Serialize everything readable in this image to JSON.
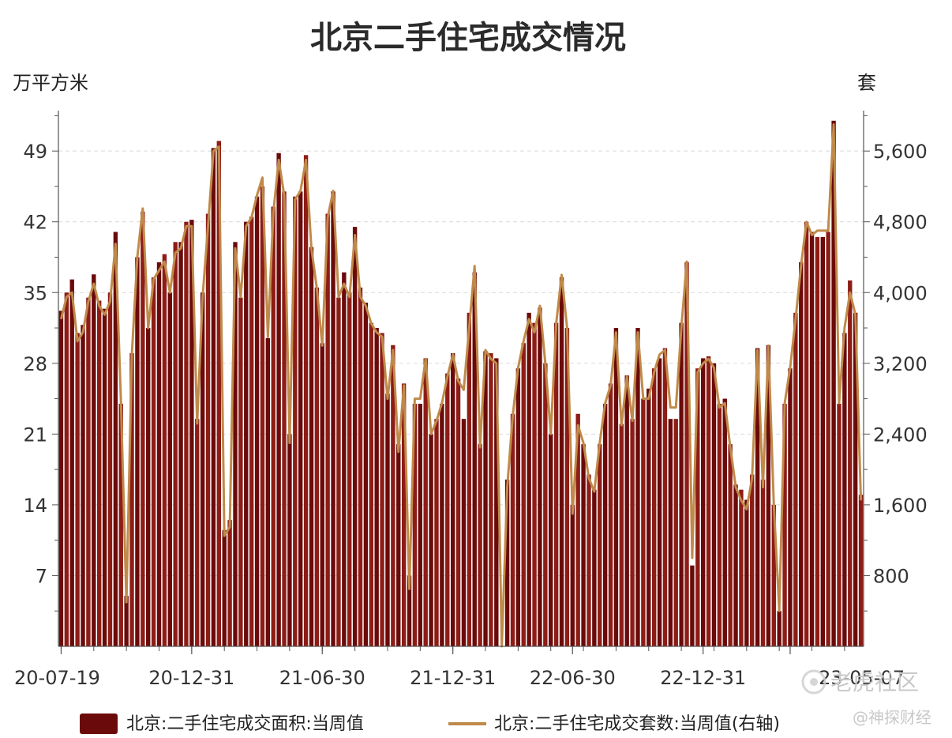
{
  "chart_data": {
    "type": "bar",
    "title": "北京二手住宅成交情况",
    "left_unit": "万平方米",
    "right_unit": "套",
    "ylim_left": [
      0,
      53
    ],
    "ylim_right": [
      0,
      6057
    ],
    "y_ticks_left": [
      7,
      14,
      21,
      28,
      35,
      42,
      49
    ],
    "y_ticks_right": [
      800,
      1600,
      2400,
      3200,
      4000,
      4800,
      5600
    ],
    "y_ticks_right_labels": [
      "800",
      "1,600",
      "2,400",
      "3,200",
      "4,000",
      "4,800",
      "5,600"
    ],
    "x_tick_labels": [
      "20-07-19",
      "20-12-31",
      "21-06-30",
      "21-12-31",
      "22-06-30",
      "22-12-31",
      "23-05-07"
    ],
    "x_tick_label_indices": [
      0,
      24,
      48,
      72,
      94,
      118,
      134
    ],
    "grid": true,
    "legend_position": "bottom",
    "series": [
      {
        "name": "北京:二手住宅成交面积:当周值",
        "kind": "bar",
        "axis": "left",
        "color": "#6b0a0a",
        "values": [
          33.2,
          35.0,
          36.3,
          31.0,
          31.8,
          34.5,
          36.8,
          34.2,
          33.4,
          35.0,
          41.0,
          24.0,
          5.0,
          29.0,
          38.5,
          43.0,
          31.5,
          36.5,
          38.0,
          38.8,
          35.0,
          40.0,
          40.0,
          42.0,
          42.2,
          22.5,
          35.0,
          42.8,
          49.3,
          50.0,
          11.5,
          12.5,
          40.0,
          34.5,
          42.0,
          42.5,
          44.5,
          45.5,
          30.5,
          43.5,
          48.8,
          45.0,
          21.0,
          44.5,
          45.0,
          48.6,
          39.5,
          35.5,
          30.0,
          42.8,
          45.0,
          34.5,
          37.0,
          35.0,
          41.5,
          35.5,
          34.0,
          32.0,
          31.5,
          31.0,
          25.0,
          29.8,
          20.0,
          26.0,
          7.0,
          24.0,
          24.0,
          28.5,
          21.0,
          22.5,
          24.0,
          27.0,
          29.0,
          26.5,
          22.5,
          33.0,
          37.0,
          20.0,
          29.2,
          29.0,
          28.5,
          0.0,
          16.5,
          23.0,
          27.5,
          30.0,
          33.0,
          32.0,
          33.5,
          28.0,
          21.0,
          32.0,
          36.5,
          31.5,
          14.0,
          23.0,
          20.0,
          17.0,
          15.5,
          20.0,
          24.0,
          26.0,
          31.5,
          22.0,
          26.8,
          22.5,
          31.5,
          24.5,
          25.5,
          27.5,
          28.5,
          29.5,
          22.5,
          22.5,
          32.0,
          38.0,
          8.0,
          27.5,
          28.5,
          28.7,
          28.0,
          24.0,
          24.5,
          20.0,
          16.0,
          15.5,
          14.5,
          17.0,
          29.5,
          16.5,
          29.8,
          14.0,
          3.5,
          24.0,
          27.5,
          33.0,
          38.0,
          42.0,
          41.0,
          40.5,
          40.5,
          41.0,
          52.0,
          24.0,
          31.0,
          36.2,
          33.0,
          15.0
        ],
        "values_original": [
          33.2,
          35.0,
          36.3,
          31.0,
          31.8,
          34.5,
          36.8,
          34.2,
          33.4,
          35.0,
          41.0,
          24.0,
          5.0,
          29.0,
          38.5,
          43.0,
          31.5,
          36.5,
          38.0,
          38.8,
          35.0,
          40.0,
          40.0,
          42.0,
          42.2,
          22.5,
          35.0,
          42.8,
          49.3,
          50.0,
          11.5,
          12.5,
          40.0,
          34.5,
          42.0,
          42.5,
          44.5,
          45.5,
          30.5,
          43.5,
          48.8,
          45.0,
          21.0,
          44.5,
          45.0,
          48.6,
          39.5,
          35.5,
          30.0,
          42.8,
          45.0,
          34.5,
          37.0,
          35.0,
          41.5,
          35.5,
          34.0,
          32.0,
          31.5,
          31.0,
          25.0,
          29.8,
          20.0,
          26.0,
          7.0,
          24.0,
          24.0,
          28.5,
          21.0,
          22.5,
          24.0,
          27.0,
          29.0,
          26.5,
          22.5,
          33.0,
          37.0,
          20.0,
          29.2,
          29.0,
          28.5,
          0.0,
          16.5,
          23.0,
          27.5,
          30.0,
          33.0,
          32.0,
          33.5,
          28.0,
          21.0,
          32.0,
          36.5,
          31.5,
          14.0,
          23.0,
          20.0,
          17.0,
          15.5,
          20.0,
          24.0,
          26.0,
          31.5,
          22.0,
          26.8,
          22.5,
          31.5,
          24.5,
          25.5,
          27.5,
          28.5,
          29.5,
          22.5,
          22.5,
          32.0,
          38.0,
          8.0,
          27.5,
          28.5,
          28.7,
          28.0,
          24.0,
          24.5,
          20.0,
          16.0,
          15.5,
          14.5,
          17.0,
          29.5,
          16.5,
          29.8,
          14.0,
          3.5,
          24.0,
          27.5,
          33.0,
          38.0,
          42.0,
          41.0,
          40.5,
          40.5,
          41.0,
          52.0,
          24.0,
          31.0,
          36.2,
          33.0,
          15.0
        ]
      },
      {
        "name": "北京:二手住宅成交套数:当周值(右轴)",
        "kind": "line",
        "axis": "right",
        "color": "#c08a4a",
        "values": [
          3700,
          3950,
          4000,
          3450,
          3550,
          3900,
          4100,
          3850,
          3750,
          3900,
          4550,
          2750,
          500,
          3300,
          4400,
          4950,
          3600,
          4150,
          4250,
          4350,
          4000,
          4450,
          4500,
          4750,
          4750,
          2520,
          3950,
          4750,
          5600,
          5650,
          1250,
          1350,
          4500,
          3950,
          4750,
          4850,
          5100,
          5300,
          3500,
          4900,
          5500,
          5100,
          2300,
          5050,
          5150,
          5500,
          4500,
          4050,
          3400,
          4850,
          5150,
          3950,
          4100,
          3950,
          4650,
          3950,
          3850,
          3650,
          3550,
          3500,
          2800,
          3350,
          2200,
          2950,
          650,
          2800,
          2800,
          3250,
          2400,
          2550,
          2750,
          3050,
          3300,
          3000,
          2900,
          3600,
          4300,
          2250,
          3350,
          3250,
          3200,
          0,
          1800,
          2600,
          3150,
          3450,
          3700,
          3550,
          3850,
          3200,
          2400,
          3650,
          4200,
          3600,
          1500,
          2500,
          2300,
          1900,
          1750,
          2300,
          2750,
          2950,
          3550,
          2500,
          3050,
          2550,
          3550,
          2800,
          2800,
          3100,
          3300,
          3350,
          2700,
          2700,
          3600,
          4350,
          1000,
          3100,
          3200,
          3250,
          3150,
          2700,
          2750,
          2250,
          1800,
          1650,
          1550,
          1900,
          3350,
          1800,
          3400,
          1600,
          400,
          2750,
          3150,
          3700,
          4300,
          4800,
          4650,
          4700,
          4700,
          4700,
          5900,
          2750,
          3600,
          4000,
          3750,
          1650
        ],
        "values_original": [
          3700,
          3950,
          4000,
          3450,
          3550,
          3900,
          4100,
          3850,
          3750,
          3900,
          4550,
          2750,
          500,
          3300,
          4400,
          4950,
          3600,
          4150,
          4250,
          4350,
          4000,
          4450,
          4500,
          4750,
          4750,
          2520,
          3950,
          4750,
          5600,
          5650,
          1250,
          1350,
          4500,
          3950,
          4750,
          4850,
          5100,
          5300,
          3500,
          4900,
          5500,
          5100,
          2300,
          5050,
          5150,
          5500,
          4500,
          4050,
          3400,
          4850,
          5150,
          3950,
          4100,
          3950,
          4650,
          3950,
          3850,
          3650,
          3550,
          3500,
          2800,
          3350,
          2200,
          2950,
          650,
          2800,
          2800,
          3250,
          2400,
          2550,
          2750,
          3050,
          3300,
          3000,
          2900,
          3600,
          4300,
          2250,
          3350,
          3250,
          3200,
          0,
          1800,
          2600,
          3150,
          3450,
          3700,
          3550,
          3850,
          3200,
          2400,
          3650,
          4200,
          3600,
          1500,
          2500,
          2300,
          1900,
          1750,
          2300,
          2750,
          2950,
          3550,
          2500,
          3050,
          2550,
          3550,
          2800,
          2800,
          3100,
          3300,
          3350,
          2700,
          2700,
          3600,
          4350,
          1000,
          3100,
          3200,
          3250,
          3150,
          2700,
          2750,
          2250,
          1800,
          1650,
          1550,
          1900,
          3350,
          1800,
          3400,
          1600,
          400,
          2750,
          3150,
          3700,
          4300,
          4800,
          4650,
          4700,
          4700,
          4700,
          5900,
          2750,
          3600,
          4000,
          3750,
          1650
        ]
      }
    ]
  },
  "watermarks": {
    "main": "老虎社区",
    "sub": "@神探财经"
  },
  "colors": {
    "bar": "#6b0a0a",
    "bar_highlight": "#8e1c16",
    "line": "#c08a4a",
    "grid": "#d9d9d9",
    "axis": "#555555"
  }
}
